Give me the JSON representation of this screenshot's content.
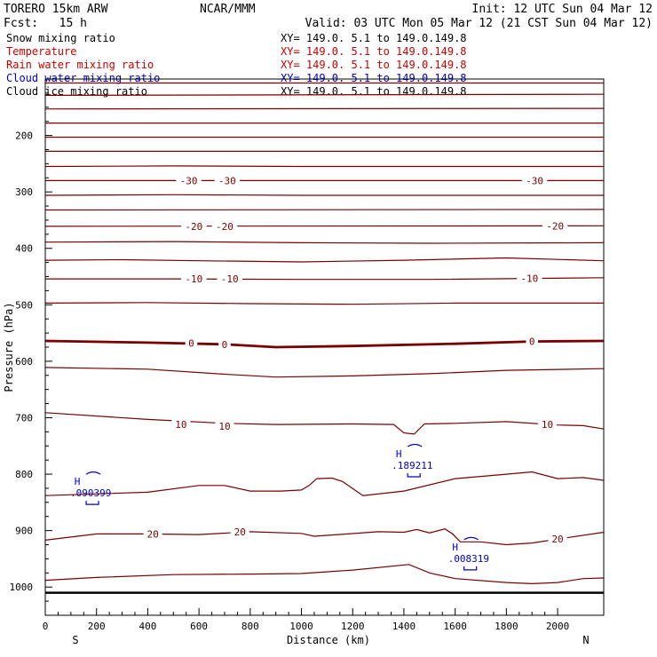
{
  "header": {
    "model": "TORERO  15km ARW",
    "center": "NCAR/MMM",
    "init": "Init: 12 UTC Sun 04 Mar 12",
    "fcst": "Fcst:   15 h",
    "valid": "Valid: 03 UTC Mon 05 Mar 12 (21 CST Sun 04 Mar 12)"
  },
  "colors": {
    "temperature": "#7a0000",
    "rain": "#cc0000",
    "cloud_water": "#0000cc",
    "black": "#000000"
  },
  "legend": [
    {
      "label": "Snow mixing ratio",
      "xy": "XY= 149.0.  5.1 to 149.0.149.8",
      "color": "#000000"
    },
    {
      "label": "Temperature",
      "xy": "XY= 149.0.  5.1 to 149.0.149.8",
      "color": "#cc0000"
    },
    {
      "label": "Rain water mixing ratio",
      "xy": "XY= 149.0.  5.1 to 149.0.149.8",
      "color": "#cc0000"
    },
    {
      "label": "Cloud water mixing ratio",
      "xy": "XY= 149.0.  5.1 to 149.0.149.8",
      "color": "#0000cc"
    },
    {
      "label": "Cloud ice mixing ratio",
      "xy": "XY= 149.0.  5.1 to 149.0.149.8",
      "color": "#000000"
    }
  ],
  "chart_data": {
    "type": "contour",
    "xlabel": "Distance (km)",
    "ylabel": "Pressure (hPa)",
    "xlim": [
      0,
      2180
    ],
    "ylim": [
      1050,
      100
    ],
    "x_ticks": [
      0,
      200,
      400,
      600,
      800,
      1000,
      1200,
      1400,
      1600,
      1800,
      2000
    ],
    "y_ticks": [
      200,
      300,
      400,
      500,
      600,
      700,
      800,
      900,
      1000
    ],
    "left_end": "S",
    "right_end": "N",
    "terrain_p": 1010,
    "temperature_contours": [
      {
        "p": [
          [
            0,
            107
          ],
          [
            2180,
            107
          ]
        ]
      },
      {
        "p": [
          [
            0,
            129
          ],
          [
            2180,
            127
          ]
        ]
      },
      {
        "p": [
          [
            0,
            153
          ],
          [
            2180,
            152
          ]
        ]
      },
      {
        "p": [
          [
            0,
            178
          ],
          [
            2180,
            178
          ]
        ]
      },
      {
        "p": [
          [
            0,
            203
          ],
          [
            2180,
            203
          ]
        ]
      },
      {
        "p": [
          [
            0,
            228
          ],
          [
            2180,
            228
          ]
        ]
      },
      {
        "p": [
          [
            0,
            255
          ],
          [
            500,
            254
          ],
          [
            1000,
            255
          ],
          [
            1500,
            255
          ],
          [
            2180,
            255
          ]
        ]
      },
      {
        "value": -30,
        "p": [
          [
            0,
            280
          ],
          [
            2180,
            280
          ]
        ],
        "labels": [
          [
            560,
            280
          ],
          [
            710,
            280
          ],
          [
            1910,
            280
          ]
        ]
      },
      {
        "p": [
          [
            0,
            306
          ],
          [
            500,
            305
          ],
          [
            1000,
            306
          ],
          [
            1500,
            306
          ],
          [
            2180,
            306
          ]
        ]
      },
      {
        "p": [
          [
            0,
            332
          ],
          [
            2180,
            331
          ]
        ]
      },
      {
        "value": -20,
        "p": [
          [
            0,
            361
          ],
          [
            2180,
            360
          ]
        ],
        "labels": [
          [
            580,
            361
          ],
          [
            700,
            361
          ],
          [
            1990,
            360
          ]
        ]
      },
      {
        "p": [
          [
            0,
            389
          ],
          [
            500,
            388
          ],
          [
            1000,
            390
          ],
          [
            1500,
            391
          ],
          [
            2180,
            390
          ]
        ]
      },
      {
        "p": [
          [
            0,
            421
          ],
          [
            300,
            420
          ],
          [
            600,
            422
          ],
          [
            1000,
            424
          ],
          [
            1400,
            421
          ],
          [
            1800,
            417
          ],
          [
            2180,
            422
          ]
        ]
      },
      {
        "value": -10,
        "p": [
          [
            0,
            454
          ],
          [
            500,
            454
          ],
          [
            1000,
            455
          ],
          [
            1500,
            455
          ],
          [
            2180,
            452
          ]
        ],
        "labels": [
          [
            580,
            454
          ],
          [
            720,
            454
          ],
          [
            1890,
            453
          ]
        ]
      },
      {
        "p": [
          [
            0,
            497
          ],
          [
            400,
            496
          ],
          [
            800,
            498
          ],
          [
            1200,
            499
          ],
          [
            1600,
            497
          ],
          [
            2180,
            497
          ]
        ]
      },
      {
        "value": 0,
        "p": [
          [
            0,
            564
          ],
          [
            400,
            567
          ],
          [
            700,
            570
          ],
          [
            900,
            575
          ],
          [
            1200,
            573
          ],
          [
            1600,
            569
          ],
          [
            1900,
            565
          ],
          [
            2180,
            564
          ]
        ],
        "labels": [
          [
            570,
            568
          ],
          [
            700,
            570
          ],
          [
            1900,
            565
          ]
        ],
        "bold": true
      },
      {
        "p": [
          [
            0,
            611
          ],
          [
            400,
            614
          ],
          [
            700,
            623
          ],
          [
            900,
            628
          ],
          [
            1200,
            626
          ],
          [
            1500,
            622
          ],
          [
            1800,
            616
          ],
          [
            2180,
            613
          ]
        ]
      },
      {
        "value": 10,
        "p": [
          [
            0,
            691
          ],
          [
            400,
            703
          ],
          [
            700,
            710
          ],
          [
            900,
            712
          ],
          [
            1200,
            711
          ],
          [
            1360,
            712
          ],
          [
            1400,
            727
          ],
          [
            1440,
            729
          ],
          [
            1480,
            711
          ],
          [
            1600,
            710
          ],
          [
            1800,
            707
          ],
          [
            2000,
            713
          ],
          [
            2100,
            714
          ],
          [
            2180,
            720
          ]
        ],
        "labels": [
          [
            530,
            712
          ],
          [
            700,
            715
          ],
          [
            1960,
            712
          ]
        ]
      },
      {
        "p": [
          [
            0,
            838
          ],
          [
            200,
            835
          ],
          [
            400,
            832
          ],
          [
            600,
            820
          ],
          [
            700,
            820
          ],
          [
            800,
            830
          ],
          [
            920,
            830
          ],
          [
            1000,
            828
          ],
          [
            1030,
            820
          ],
          [
            1060,
            808
          ],
          [
            1120,
            807
          ],
          [
            1160,
            813
          ],
          [
            1240,
            838
          ],
          [
            1400,
            830
          ],
          [
            1600,
            808
          ],
          [
            1800,
            800
          ],
          [
            1900,
            796
          ],
          [
            2000,
            808
          ],
          [
            2100,
            806
          ],
          [
            2180,
            811
          ]
        ]
      },
      {
        "value": 20,
        "p": [
          [
            0,
            917
          ],
          [
            200,
            906
          ],
          [
            400,
            906
          ],
          [
            600,
            907
          ],
          [
            800,
            902
          ],
          [
            1000,
            905
          ],
          [
            1050,
            910
          ],
          [
            1300,
            902
          ],
          [
            1400,
            903
          ],
          [
            1450,
            898
          ],
          [
            1500,
            904
          ],
          [
            1560,
            897
          ],
          [
            1590,
            906
          ],
          [
            1620,
            920
          ],
          [
            1700,
            920
          ],
          [
            1800,
            925
          ],
          [
            1900,
            922
          ],
          [
            2000,
            915
          ],
          [
            2180,
            903
          ]
        ],
        "labels": [
          [
            420,
            906
          ],
          [
            760,
            902
          ],
          [
            2000,
            915
          ]
        ]
      },
      {
        "p": [
          [
            0,
            988
          ],
          [
            200,
            983
          ],
          [
            500,
            978
          ],
          [
            800,
            977
          ],
          [
            1000,
            976
          ],
          [
            1200,
            970
          ],
          [
            1420,
            960
          ],
          [
            1500,
            975
          ],
          [
            1600,
            985
          ],
          [
            1800,
            992
          ],
          [
            1900,
            994
          ],
          [
            2000,
            992
          ],
          [
            2100,
            985
          ],
          [
            2180,
            984
          ]
        ]
      }
    ],
    "cloud_water_highs": [
      {
        "label": "H",
        "value": ".090399",
        "x": 125,
        "p": 819
      },
      {
        "label": "H",
        "value": ".189211",
        "x": 1380,
        "p": 770
      },
      {
        "label": "H",
        "value": ".008319",
        "x": 1600,
        "p": 935
      }
    ]
  }
}
